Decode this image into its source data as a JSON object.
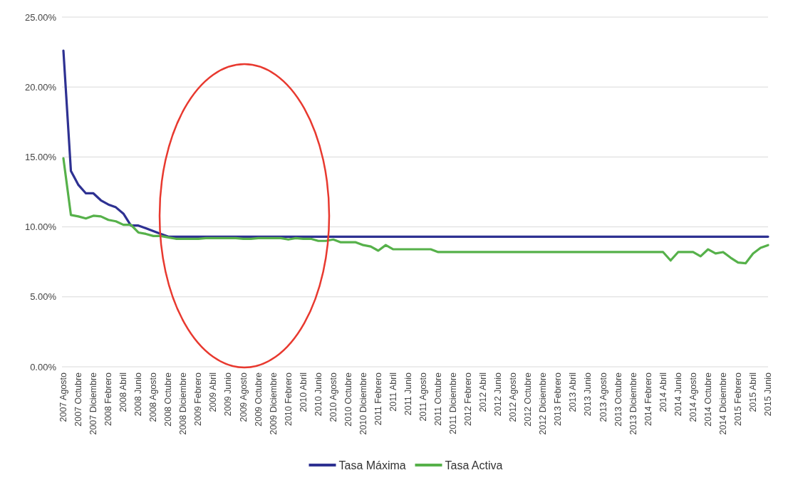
{
  "chart_data": {
    "type": "line",
    "categories": [
      "2007 Agosto",
      null,
      "2007 Octubre",
      null,
      "2007 Diciembre",
      null,
      "2008 Febrero",
      null,
      "2008 Abril",
      null,
      "2008 Junio",
      null,
      "2008 Agosto",
      null,
      "2008 Octubre",
      null,
      "2008 Diciembre",
      null,
      "2009 Febrero",
      null,
      "2009 Abril",
      null,
      "2009 Junio",
      null,
      "2009 Agosto",
      null,
      "2009 Octubre",
      null,
      "2009 Diciembre",
      null,
      "2010 Febrero",
      null,
      "2010 Abril",
      null,
      "2010 Junio",
      null,
      "2010 Agosto",
      null,
      "2010 Octubre",
      null,
      "2010 Diciembre",
      null,
      "2011 Febrero",
      null,
      "2011 Abril",
      null,
      "2011 Junio",
      null,
      "2011 Agosto",
      null,
      "2011 Octubre",
      null,
      "2011 Diciembre",
      null,
      "2012 Febrero",
      null,
      "2012 Abril",
      null,
      "2012 Junio",
      null,
      "2012 Agosto",
      null,
      "2012 Octubre",
      null,
      "2012 Diciembre",
      null,
      "2013 Febrero",
      null,
      "2013 Abril",
      null,
      "2013 Junio",
      null,
      "2013 Agosto",
      null,
      "2013 Octubre",
      null,
      "2013 Diciembre",
      null,
      "2014 Febrero",
      null,
      "2014 Abril",
      null,
      "2014 Junio",
      null,
      "2014 Agosto",
      null,
      "2014 Octubre",
      null,
      "2014 Diciembre",
      null,
      "2015 Febrero",
      null,
      "2015 Abril",
      null,
      "2015 Junio"
    ],
    "series": [
      {
        "name": "Tasa Máxima",
        "color": "#2e3192",
        "values": [
          22.6,
          14.0,
          13.0,
          12.4,
          12.4,
          11.9,
          11.6,
          11.4,
          10.95,
          10.1,
          10.1,
          9.9,
          9.7,
          9.5,
          9.3,
          9.3,
          9.3,
          9.3,
          9.3,
          9.3,
          9.3,
          9.3,
          9.3,
          9.3,
          9.3,
          9.3,
          9.3,
          9.3,
          9.3,
          9.3,
          9.3,
          9.3,
          9.3,
          9.3,
          9.3,
          9.3,
          9.3,
          9.3,
          9.3,
          9.3,
          9.3,
          9.3,
          9.3,
          9.3,
          9.3,
          9.3,
          9.3,
          9.3,
          9.3,
          9.3,
          9.3,
          9.3,
          9.3,
          9.3,
          9.3,
          9.3,
          9.3,
          9.3,
          9.3,
          9.3,
          9.3,
          9.3,
          9.3,
          9.3,
          9.3,
          9.3,
          9.3,
          9.3,
          9.3,
          9.3,
          9.3,
          9.3,
          9.3,
          9.3,
          9.3,
          9.3,
          9.3,
          9.3,
          9.3,
          9.3,
          9.3,
          9.3,
          9.3,
          9.3,
          9.3,
          9.3,
          9.3,
          9.3,
          9.3,
          9.3,
          9.3,
          9.3,
          9.3,
          9.3,
          9.3
        ]
      },
      {
        "name": "Tasa Activa",
        "color": "#56b14a",
        "values": [
          14.9,
          10.85,
          10.75,
          10.6,
          10.8,
          10.75,
          10.5,
          10.4,
          10.15,
          10.15,
          9.6,
          9.5,
          9.35,
          9.35,
          9.25,
          9.15,
          9.15,
          9.15,
          9.15,
          9.2,
          9.2,
          9.2,
          9.2,
          9.2,
          9.15,
          9.15,
          9.2,
          9.2,
          9.2,
          9.2,
          9.1,
          9.2,
          9.15,
          9.15,
          9.0,
          9.0,
          9.1,
          8.9,
          8.9,
          8.9,
          8.7,
          8.6,
          8.3,
          8.7,
          8.4,
          8.4,
          8.4,
          8.4,
          8.4,
          8.4,
          8.2,
          8.2,
          8.2,
          8.2,
          8.2,
          8.2,
          8.2,
          8.2,
          8.2,
          8.2,
          8.2,
          8.2,
          8.2,
          8.2,
          8.2,
          8.2,
          8.2,
          8.2,
          8.2,
          8.2,
          8.2,
          8.2,
          8.2,
          8.2,
          8.2,
          8.2,
          8.2,
          8.2,
          8.2,
          8.2,
          8.2,
          7.6,
          8.2,
          8.2,
          8.2,
          7.9,
          8.4,
          8.1,
          8.2,
          7.8,
          7.45,
          7.4,
          8.1,
          8.5,
          8.7
        ]
      }
    ],
    "ylim": [
      0,
      25
    ],
    "yticks": [
      {
        "value": 0,
        "label": "0.00%"
      },
      {
        "value": 5,
        "label": "5.00%"
      },
      {
        "value": 10,
        "label": "10.00%"
      },
      {
        "value": 15,
        "label": "15.00%"
      },
      {
        "value": 20,
        "label": "20.00%"
      },
      {
        "value": 25,
        "label": "25.00%"
      }
    ],
    "grid": "y",
    "legend": "bottom",
    "marker": "none",
    "line_style": "solid"
  }
}
